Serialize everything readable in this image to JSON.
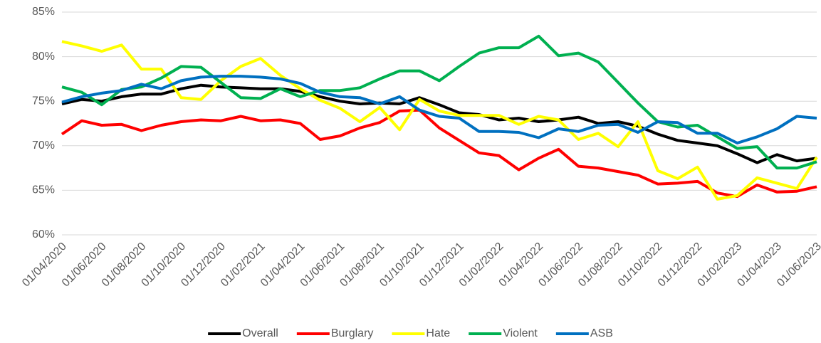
{
  "chart_data": {
    "type": "line",
    "categories": [
      "01/04/2020",
      null,
      "01/06/2020",
      null,
      "01/08/2020",
      null,
      "01/10/2020",
      null,
      "01/12/2020",
      null,
      "01/02/2021",
      null,
      "01/04/2021",
      null,
      "01/06/2021",
      null,
      "01/08/2021",
      null,
      "01/10/2021",
      null,
      "01/12/2021",
      null,
      "01/02/2022",
      null,
      "01/04/2022",
      null,
      "01/06/2022",
      null,
      "01/08/2022",
      null,
      "01/10/2022",
      null,
      "01/12/2022",
      null,
      "01/02/2023",
      null,
      "01/04/2023",
      null,
      "01/06/2023"
    ],
    "series": [
      {
        "name": "Overall",
        "color": "#000000",
        "values": [
          74.7,
          75.2,
          75.0,
          75.5,
          75.8,
          75.8,
          76.4,
          76.8,
          76.6,
          76.5,
          76.4,
          76.4,
          76.1,
          75.5,
          75.0,
          74.7,
          74.8,
          74.7,
          75.4,
          74.6,
          73.7,
          73.5,
          72.9,
          73.1,
          72.7,
          72.9,
          73.2,
          72.5,
          72.7,
          72.2,
          71.3,
          70.6,
          70.3,
          70.0,
          69.1,
          68.1,
          69.0,
          68.3,
          68.6
        ]
      },
      {
        "name": "Burglary",
        "color": "#ff0000",
        "values": [
          71.3,
          72.8,
          72.3,
          72.4,
          71.7,
          72.3,
          72.7,
          72.9,
          72.8,
          73.3,
          72.8,
          72.9,
          72.5,
          70.7,
          71.1,
          72.0,
          72.6,
          73.9,
          74.0,
          72.0,
          70.6,
          69.2,
          68.9,
          67.3,
          68.6,
          69.6,
          67.7,
          67.5,
          67.1,
          66.7,
          65.7,
          65.8,
          66.0,
          64.7,
          64.3,
          65.6,
          64.8,
          64.9,
          65.4
        ]
      },
      {
        "name": "Hate",
        "color": "#ffff00",
        "values": [
          81.7,
          81.2,
          80.6,
          81.3,
          78.6,
          78.6,
          75.4,
          75.2,
          77.3,
          78.9,
          79.8,
          77.9,
          76.4,
          75.1,
          74.2,
          72.7,
          74.3,
          71.8,
          75.2,
          73.9,
          73.4,
          73.4,
          73.4,
          72.4,
          73.3,
          72.9,
          70.7,
          71.4,
          69.9,
          72.7,
          67.2,
          66.3,
          67.6,
          64.0,
          64.4,
          66.4,
          65.8,
          65.2,
          68.7
        ]
      },
      {
        "name": "Violent",
        "color": "#00b050",
        "values": [
          76.6,
          76.0,
          74.6,
          76.3,
          76.6,
          77.6,
          78.9,
          78.8,
          77.1,
          75.4,
          75.3,
          76.4,
          75.5,
          76.2,
          76.2,
          76.5,
          77.5,
          78.4,
          78.4,
          77.3,
          78.9,
          80.4,
          81.0,
          81.0,
          82.3,
          80.1,
          80.4,
          79.4,
          77.1,
          74.8,
          72.7,
          72.1,
          72.3,
          71.0,
          69.7,
          69.9,
          67.5,
          67.5,
          68.2
        ]
      },
      {
        "name": "ASB",
        "color": "#0070c0",
        "values": [
          74.9,
          75.5,
          75.9,
          76.2,
          76.9,
          76.4,
          77.3,
          77.7,
          77.8,
          77.8,
          77.7,
          77.5,
          77.0,
          76.0,
          75.5,
          75.4,
          74.7,
          75.5,
          74.0,
          73.3,
          73.1,
          71.6,
          71.6,
          71.5,
          70.9,
          71.9,
          71.6,
          72.3,
          72.4,
          71.5,
          72.7,
          72.6,
          71.4,
          71.4,
          70.3,
          71.0,
          71.9,
          73.3,
          73.1
        ]
      }
    ],
    "ylim": [
      60,
      85
    ],
    "yticks": [
      {
        "value": 60,
        "label": "60%"
      },
      {
        "value": 65,
        "label": "65%"
      },
      {
        "value": 70,
        "label": "70%"
      },
      {
        "value": 75,
        "label": "75%"
      },
      {
        "value": 80,
        "label": "80%"
      },
      {
        "value": 85,
        "label": "85%"
      }
    ],
    "grid": true,
    "legend": "bottom"
  }
}
